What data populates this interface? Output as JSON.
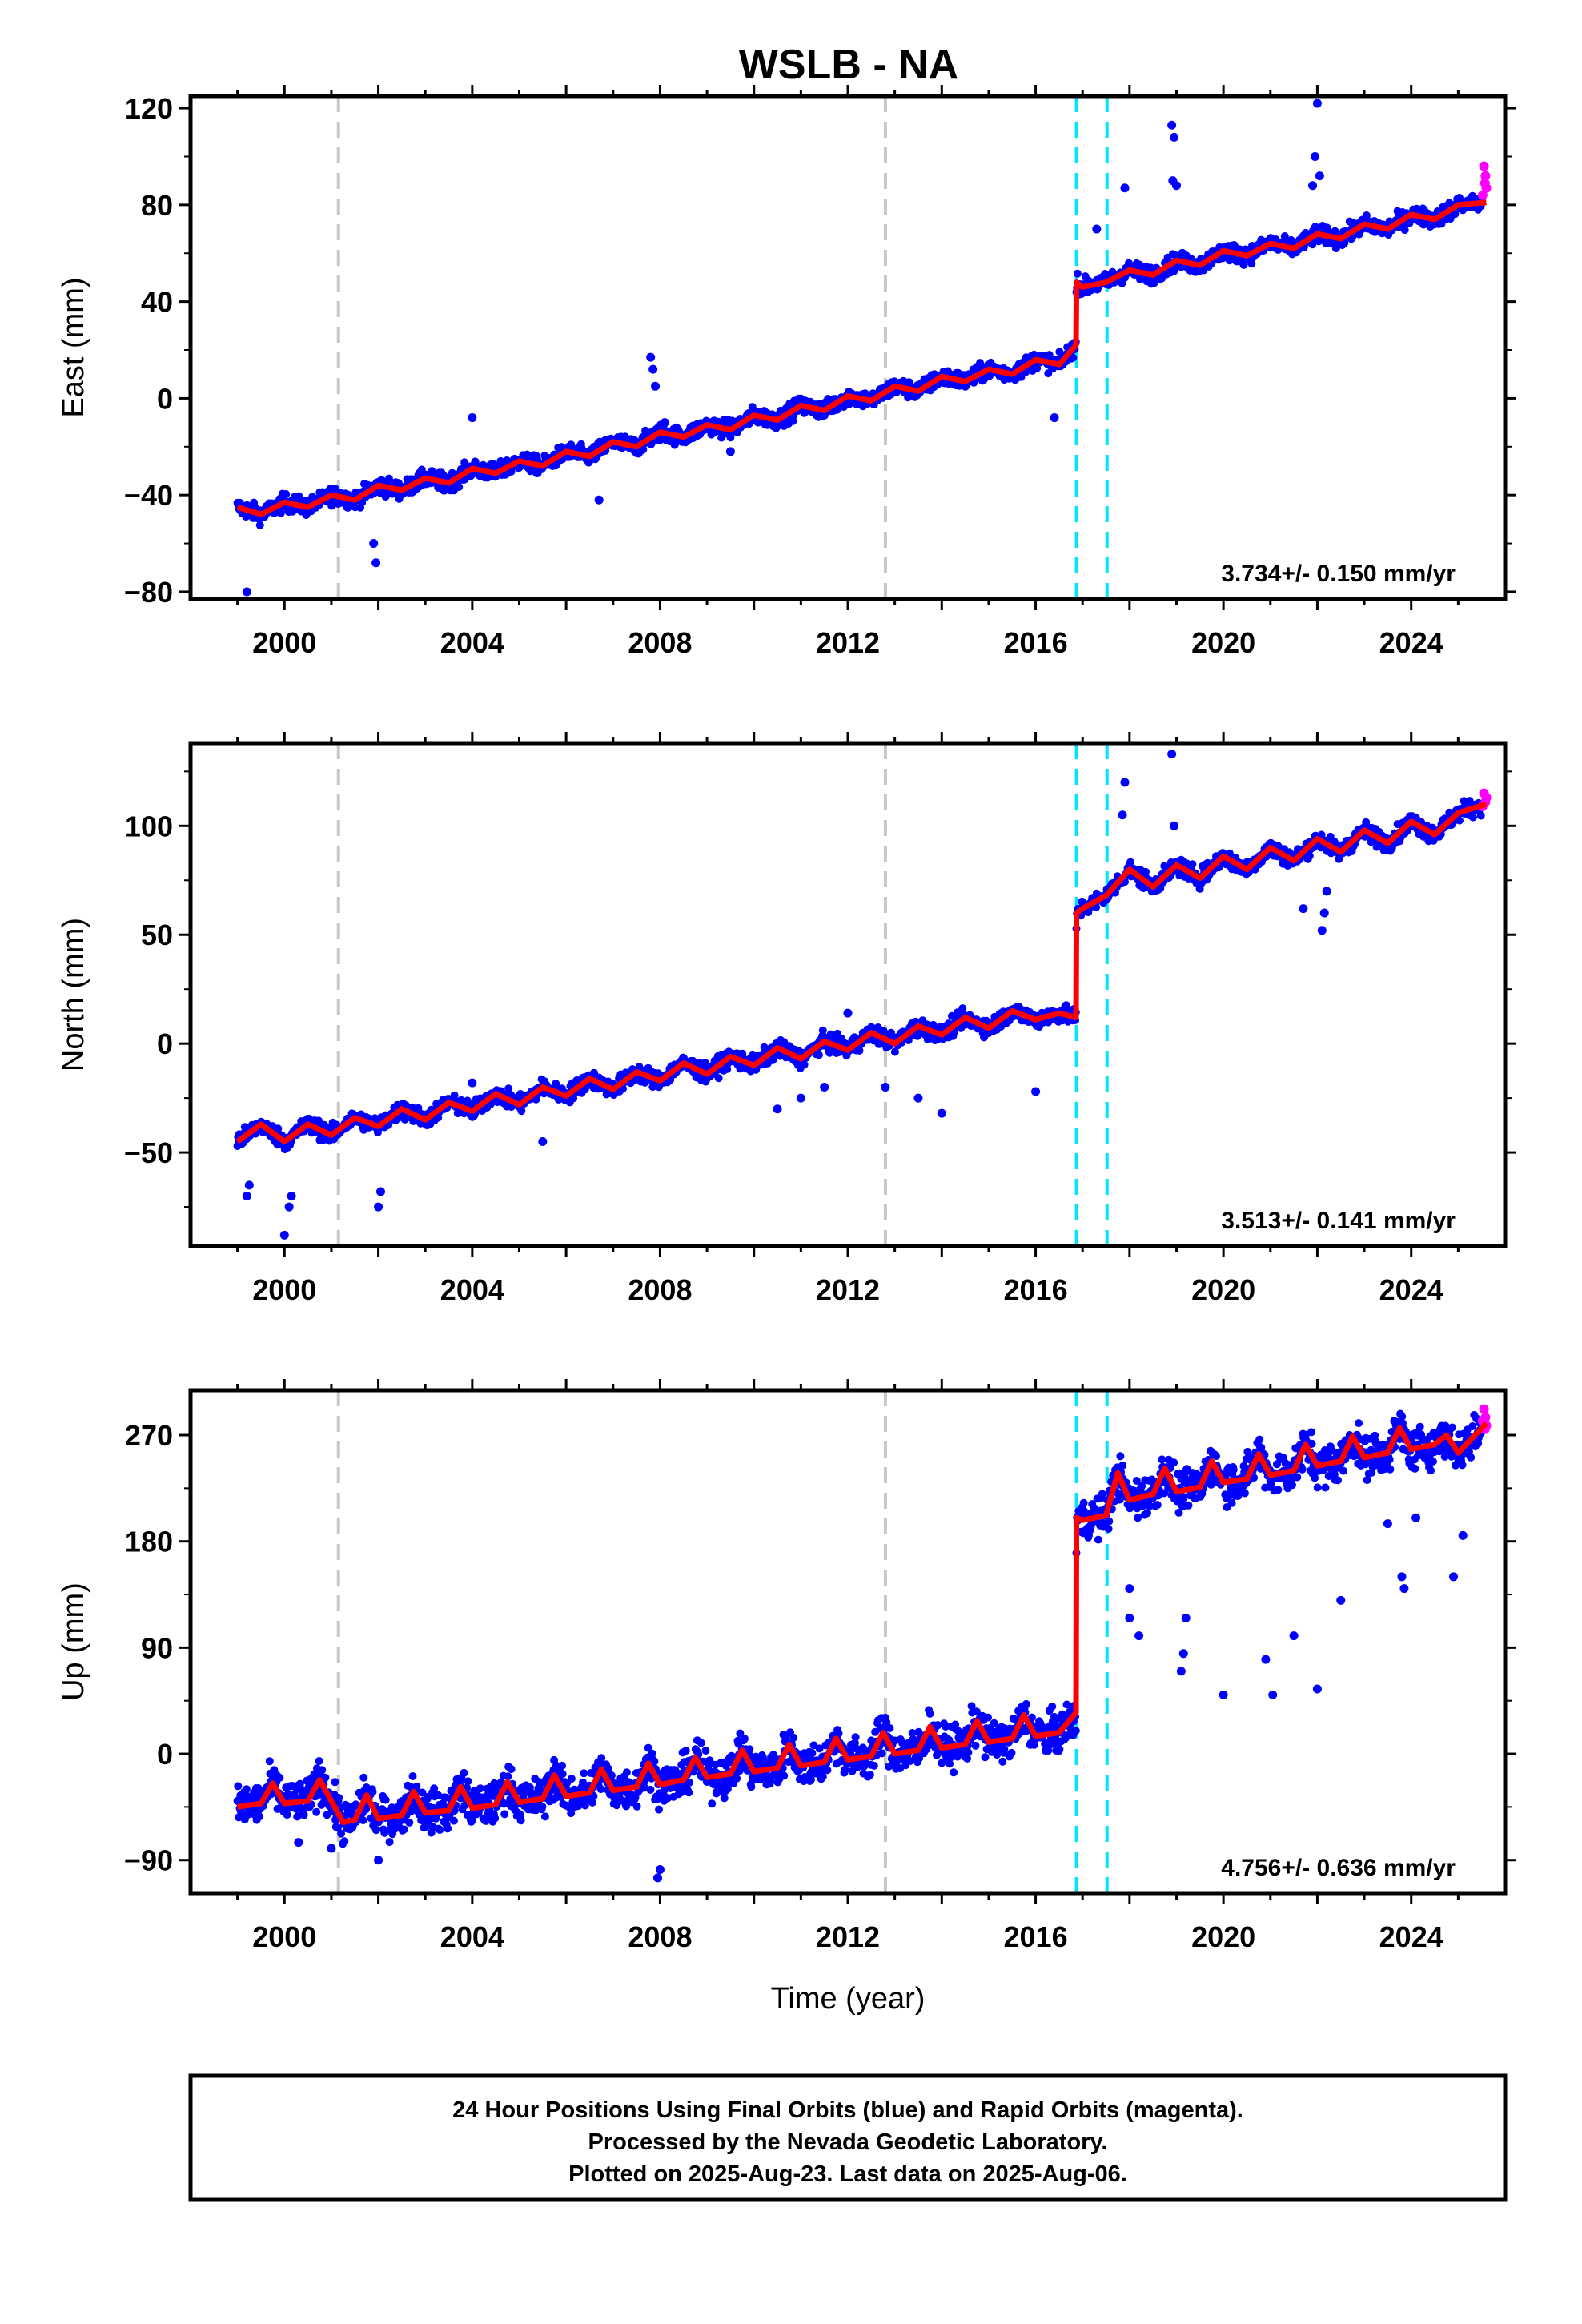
{
  "title": "WSLB - NA",
  "footer": {
    "line1": "24 Hour Positions Using Final Orbits (blue) and Rapid Orbits (magenta).",
    "line2": "Processed by the Nevada Geodetic Laboratory.",
    "line3": "Plotted on 2025-Aug-23. Last data on 2025-Aug-06."
  },
  "colors": {
    "final_orbits": "#0000ff",
    "rapid_orbits": "#ff00ff",
    "model_fit": "#ff0000",
    "equipment_change": "#c8c8c8",
    "earthquake_step": "#00e5ff"
  },
  "chart_data": [
    {
      "type": "scatter",
      "panel": "east",
      "ylabel": "East (mm)",
      "xlabel": "",
      "xlim": [
        1998.0,
        2026.0
      ],
      "ylim": [
        -83,
        125
      ],
      "yticks": [
        -80,
        -40,
        0,
        40,
        80,
        120
      ],
      "xticks": [
        2000,
        2004,
        2008,
        2012,
        2016,
        2020,
        2024
      ],
      "rate_label": "3.734+/- 0.150 mm/yr",
      "vlines_gray": [
        2001.15,
        2012.8
      ],
      "vlines_cyan": [
        2016.87,
        2017.52
      ],
      "series": [
        {
          "role": "model",
          "x": [
            1999.0,
            1999.5,
            2000.0,
            2000.5,
            2001.0,
            2001.5,
            2002.0,
            2002.5,
            2003.0,
            2003.5,
            2004.0,
            2004.5,
            2005.0,
            2005.5,
            2006.0,
            2006.5,
            2007.0,
            2007.5,
            2008.0,
            2008.5,
            2009.0,
            2009.5,
            2010.0,
            2010.5,
            2011.0,
            2011.5,
            2012.0,
            2012.5,
            2013.0,
            2013.5,
            2014.0,
            2014.5,
            2015.0,
            2015.5,
            2016.0,
            2016.5,
            2016.86,
            2016.87,
            2017.0,
            2017.5,
            2018.0,
            2018.5,
            2019.0,
            2019.5,
            2020.0,
            2020.5,
            2021.0,
            2021.5,
            2022.0,
            2022.5,
            2023.0,
            2023.5,
            2024.0,
            2024.5,
            2025.0,
            2025.6
          ],
          "y": [
            -45,
            -48,
            -43,
            -45,
            -40,
            -42,
            -36,
            -38,
            -33,
            -35,
            -29,
            -31,
            -26,
            -28,
            -22,
            -24,
            -18,
            -20,
            -14,
            -16,
            -11,
            -13,
            -7,
            -9,
            -3,
            -5,
            1,
            -1,
            5,
            3,
            9,
            7,
            12,
            10,
            16,
            14,
            22,
            48,
            46,
            48,
            53,
            51,
            57,
            55,
            61,
            59,
            64,
            62,
            68,
            66,
            72,
            70,
            76,
            74,
            80,
            81
          ]
        },
        {
          "role": "outliers",
          "points": [
            [
              1999.2,
              -80
            ],
            [
              2001.9,
              -60
            ],
            [
              2001.95,
              -68
            ],
            [
              2003.4,
              -38
            ],
            [
              2004.0,
              -8
            ],
            [
              2006.7,
              -42
            ],
            [
              2007.8,
              17
            ],
            [
              2007.85,
              12
            ],
            [
              2007.9,
              5
            ],
            [
              2008.1,
              -10
            ],
            [
              2009.5,
              -22
            ],
            [
              2016.4,
              -8
            ],
            [
              2017.9,
              87
            ],
            [
              2018.9,
              113
            ],
            [
              2018.95,
              108
            ],
            [
              2018.92,
              90
            ],
            [
              2019.0,
              88
            ],
            [
              2022.0,
              122
            ],
            [
              2021.95,
              100
            ],
            [
              2022.05,
              92
            ],
            [
              2021.9,
              88
            ],
            [
              2017.3,
              70
            ]
          ]
        },
        {
          "role": "rapid",
          "points": [
            [
              2025.55,
              96
            ],
            [
              2025.58,
              92
            ],
            [
              2025.6,
              87
            ],
            [
              2025.52,
              84
            ],
            [
              2025.57,
              89
            ]
          ]
        }
      ]
    },
    {
      "type": "scatter",
      "panel": "north",
      "ylabel": "North (mm)",
      "xlabel": "",
      "xlim": [
        1998.0,
        2026.0
      ],
      "ylim": [
        -93,
        138
      ],
      "yticks": [
        -50,
        0,
        50,
        100
      ],
      "xticks": [
        2000,
        2004,
        2008,
        2012,
        2016,
        2020,
        2024
      ],
      "rate_label": "3.513+/- 0.141 mm/yr",
      "vlines_gray": [
        2001.15,
        2012.8
      ],
      "vlines_cyan": [
        2016.87,
        2017.52
      ],
      "series": [
        {
          "role": "model",
          "x": [
            1999.0,
            1999.5,
            2000.0,
            2000.5,
            2001.0,
            2001.5,
            2002.0,
            2002.5,
            2003.0,
            2003.5,
            2004.0,
            2004.5,
            2005.0,
            2005.5,
            2006.0,
            2006.5,
            2007.0,
            2007.5,
            2008.0,
            2008.5,
            2009.0,
            2009.5,
            2010.0,
            2010.5,
            2011.0,
            2011.5,
            2012.0,
            2012.5,
            2013.0,
            2013.5,
            2014.0,
            2014.5,
            2015.0,
            2015.5,
            2016.0,
            2016.5,
            2016.86,
            2016.87,
            2017.0,
            2017.5,
            2018.0,
            2018.5,
            2019.0,
            2019.5,
            2020.0,
            2020.5,
            2021.0,
            2021.5,
            2022.0,
            2022.5,
            2023.0,
            2023.5,
            2024.0,
            2024.5,
            2025.0,
            2025.6
          ],
          "y": [
            -45,
            -37,
            -45,
            -37,
            -42,
            -34,
            -38,
            -30,
            -35,
            -27,
            -31,
            -23,
            -28,
            -20,
            -24,
            -16,
            -21,
            -13,
            -17,
            -9,
            -14,
            -6,
            -10,
            -2,
            -7,
            1,
            -3,
            5,
            0,
            8,
            4,
            12,
            7,
            15,
            11,
            14,
            12,
            60,
            62,
            68,
            80,
            72,
            82,
            76,
            86,
            80,
            90,
            84,
            94,
            88,
            98,
            92,
            102,
            96,
            106,
            110
          ]
        },
        {
          "role": "outliers",
          "points": [
            [
              1999.2,
              -70
            ],
            [
              1999.25,
              -65
            ],
            [
              2000.0,
              -88
            ],
            [
              2000.1,
              -75
            ],
            [
              2000.15,
              -70
            ],
            [
              2002.0,
              -75
            ],
            [
              2002.05,
              -68
            ],
            [
              2004.0,
              -18
            ],
            [
              2005.5,
              -45
            ],
            [
              2010.5,
              -30
            ],
            [
              2011.0,
              -25
            ],
            [
              2011.5,
              -20
            ],
            [
              2012.0,
              14
            ],
            [
              2012.8,
              -20
            ],
            [
              2013.5,
              -25
            ],
            [
              2014.0,
              -32
            ],
            [
              2016.0,
              -22
            ],
            [
              2017.9,
              120
            ],
            [
              2017.85,
              105
            ],
            [
              2018.9,
              133
            ],
            [
              2018.95,
              100
            ],
            [
              2021.7,
              62
            ],
            [
              2022.1,
              52
            ],
            [
              2022.15,
              60
            ],
            [
              2022.2,
              70
            ]
          ]
        },
        {
          "role": "rapid",
          "points": [
            [
              2025.55,
              115
            ],
            [
              2025.58,
              111
            ],
            [
              2025.6,
              113
            ],
            [
              2025.52,
              109
            ]
          ]
        }
      ]
    },
    {
      "type": "scatter",
      "panel": "up",
      "ylabel": "Up (mm)",
      "xlabel": "Time (year)",
      "xlim": [
        1998.0,
        2026.0
      ],
      "ylim": [
        -118,
        308
      ],
      "yticks": [
        -90,
        0,
        90,
        180,
        270
      ],
      "xticks": [
        2000,
        2004,
        2008,
        2012,
        2016,
        2020,
        2024
      ],
      "rate_label": "4.756+/- 0.636 mm/yr",
      "vlines_gray": [
        2001.15,
        2012.8
      ],
      "vlines_cyan": [
        2016.87,
        2017.52
      ],
      "series": [
        {
          "role": "model",
          "x": [
            1999.0,
            1999.5,
            1999.75,
            2000.0,
            2000.5,
            2000.75,
            2001.0,
            2001.25,
            2001.5,
            2001.75,
            2002.0,
            2002.5,
            2002.75,
            2003.0,
            2003.5,
            2003.75,
            2004.0,
            2004.5,
            2004.75,
            2005.0,
            2005.5,
            2005.75,
            2006.0,
            2006.5,
            2006.75,
            2007.0,
            2007.5,
            2007.75,
            2008.0,
            2008.5,
            2008.75,
            2009.0,
            2009.5,
            2009.75,
            2010.0,
            2010.5,
            2010.75,
            2011.0,
            2011.5,
            2011.75,
            2012.0,
            2012.5,
            2012.75,
            2013.0,
            2013.5,
            2013.75,
            2014.0,
            2014.5,
            2014.75,
            2015.0,
            2015.5,
            2015.75,
            2016.0,
            2016.5,
            2016.86,
            2016.87,
            2017.0,
            2017.5,
            2017.75,
            2018.0,
            2018.5,
            2018.75,
            2019.0,
            2019.5,
            2019.75,
            2020.0,
            2020.5,
            2020.75,
            2021.0,
            2021.5,
            2021.75,
            2022.0,
            2022.5,
            2022.75,
            2023.0,
            2023.5,
            2023.75,
            2024.0,
            2024.5,
            2024.75,
            2025.0,
            2025.6
          ],
          "y": [
            -45,
            -42,
            -25,
            -42,
            -40,
            -22,
            -40,
            -58,
            -56,
            -35,
            -55,
            -52,
            -32,
            -50,
            -48,
            -28,
            -46,
            -43,
            -24,
            -41,
            -38,
            -18,
            -36,
            -33,
            -13,
            -31,
            -28,
            -8,
            -26,
            -22,
            -3,
            -20,
            -17,
            3,
            -15,
            -12,
            8,
            -10,
            -7,
            13,
            -5,
            -2,
            18,
            0,
            3,
            23,
            5,
            8,
            28,
            10,
            13,
            33,
            15,
            18,
            35,
            200,
            198,
            202,
            238,
            215,
            220,
            242,
            222,
            226,
            248,
            230,
            233,
            254,
            236,
            240,
            262,
            244,
            248,
            269,
            251,
            255,
            276,
            258,
            262,
            270,
            255,
            280
          ]
        },
        {
          "role": "outliers",
          "points": [
            [
              2002.0,
              -90
            ],
            [
              2007.95,
              -105
            ],
            [
              2008.0,
              -98
            ],
            [
              2000.3,
              -75
            ],
            [
              2001.0,
              -80
            ],
            [
              2018.0,
              115
            ],
            [
              2018.2,
              100
            ],
            [
              2019.1,
              70
            ],
            [
              2019.15,
              85
            ],
            [
              2019.2,
              115
            ],
            [
              2020.0,
              50
            ],
            [
              2020.9,
              80
            ],
            [
              2021.05,
              50
            ],
            [
              2021.5,
              100
            ],
            [
              2022.0,
              55
            ],
            [
              2022.5,
              130
            ],
            [
              2023.8,
              150
            ],
            [
              2023.85,
              140
            ],
            [
              2024.1,
              200
            ],
            [
              2024.9,
              150
            ],
            [
              2025.1,
              185
            ],
            [
              2023.5,
              195
            ],
            [
              2018.0,
              140
            ]
          ]
        },
        {
          "role": "rapid",
          "points": [
            [
              2025.55,
              292
            ],
            [
              2025.58,
              285
            ],
            [
              2025.6,
              278
            ],
            [
              2025.52,
              282
            ],
            [
              2025.57,
              275
            ]
          ]
        }
      ]
    }
  ]
}
